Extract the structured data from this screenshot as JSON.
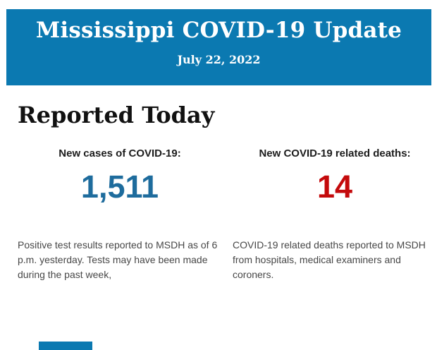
{
  "header": {
    "title": "Mississippi COVID-19 Update",
    "date": "July 22, 2022",
    "background_color": "#0b79b1",
    "text_color": "#ffffff"
  },
  "section": {
    "heading": "Reported Today"
  },
  "stats": [
    {
      "label": "New cases of COVID-19:",
      "value": "1,511",
      "value_color": "#1e6c9d",
      "description": "Positive test results reported to MSDH as of 6 p.m. yesterday. Tests may have been made during the past week,"
    },
    {
      "label": "New COVID-19 related deaths:",
      "value": "14",
      "value_color": "#c40a0c",
      "description": "COVID-19 related deaths reported to MSDH from hospitals, medical examiners and coroners."
    }
  ],
  "footer": {
    "partial_banner_color": "#0b79b1"
  }
}
